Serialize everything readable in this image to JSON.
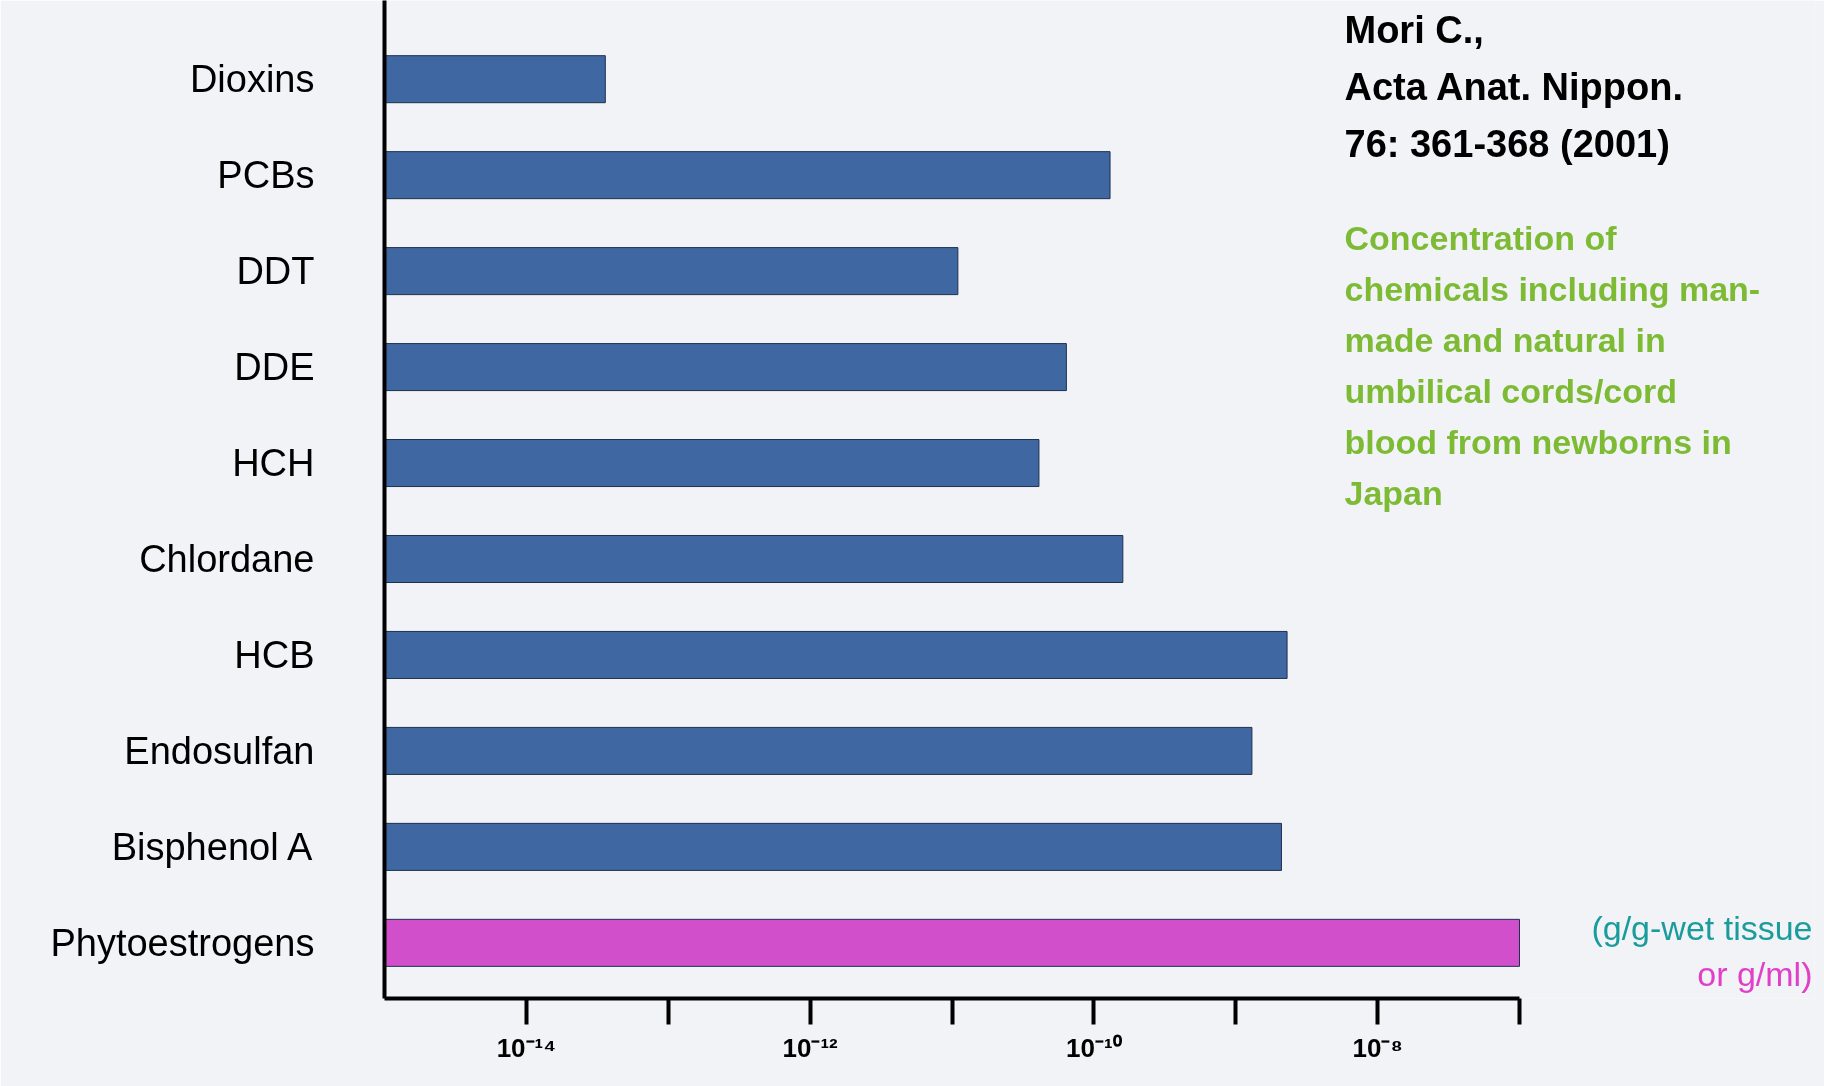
{
  "chart_data": {
    "type": "bar",
    "orientation": "horizontal",
    "log": "x",
    "categories": [
      "Dioxins",
      "PCBs",
      "DDT",
      "DDE",
      "HCH",
      "Chlordane",
      "HCB",
      "Endosulfan",
      "Bisphenol A",
      "Phytoestrogens"
    ],
    "values": [
      3.6e-14,
      1.3e-10,
      1.1e-11,
      6.4e-11,
      4.1e-11,
      1.6e-10,
      2.3e-09,
      1.3e-09,
      2.1e-09,
      1e-07
    ],
    "colors": [
      "#3f68a2",
      "#3f68a2",
      "#3f68a2",
      "#3f68a2",
      "#3f68a2",
      "#3f68a2",
      "#3f68a2",
      "#3f68a2",
      "#3f68a2",
      "#d24fcb"
    ],
    "xlim": [
      1e-15,
      1e-07
    ],
    "xticks": [
      {
        "value": 1e-14,
        "label": "10⁻¹⁴"
      },
      {
        "value": 1e-12,
        "label": "10⁻¹²"
      },
      {
        "value": 1e-10,
        "label": "10⁻¹⁰"
      },
      {
        "value": 1e-08,
        "label": "10⁻⁸"
      }
    ],
    "xlabel": "(g/g-wet tissue or g/ml)",
    "annotations": [
      "Mori C., Acta Anat. Nippon. 76: 361-368 (2001)",
      "Concentration of chemicals including man-made and natural in umbilical cords/cord blood from newborns in Japan"
    ],
    "grid": false
  }
}
